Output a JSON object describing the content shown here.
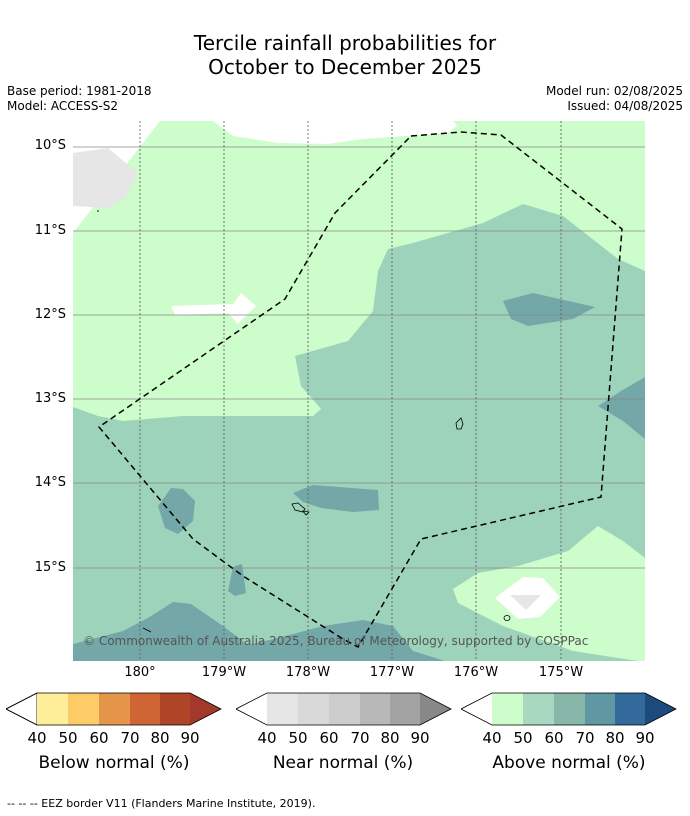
{
  "header": {
    "title_line1": "Tercile rainfall probabilities for",
    "title_line2": "October to December 2025",
    "base_period": "Base period: 1981-2018",
    "model": "Model: ACCESS-S2",
    "model_run": "Model run: 02/08/2025",
    "issued": "Issued: 04/08/2025"
  },
  "map": {
    "lat_labels": [
      "10°S",
      "11°S",
      "12°S",
      "13°S",
      "14°S",
      "15°S"
    ],
    "lon_labels": [
      "180°",
      "179°W",
      "178°W",
      "177°W",
      "176°W",
      "175°W"
    ],
    "copyright": "© Commonwealth of Australia 2025, Bureau of Meteorology, supported by COSPPac",
    "colors": {
      "above_40": "#ccfdca",
      "above_50": "#9ed3bb",
      "above_60": "#73a7a8",
      "near_40": "#e6e6e6",
      "background": "#ffffff"
    }
  },
  "legends": {
    "ticks": [
      "40",
      "50",
      "60",
      "70",
      "80",
      "90"
    ],
    "below": {
      "label": "Below normal (%)",
      "colors": [
        "#ffee99",
        "#fecc66",
        "#e4954a",
        "#cf6535",
        "#ad4526",
        "#a3392b"
      ]
    },
    "near": {
      "label": "Near normal (%)",
      "colors": [
        "#e6e6e6",
        "#d9d9d9",
        "#cccccc",
        "#b8b8b8",
        "#a3a3a3",
        "#888888"
      ]
    },
    "above": {
      "label": "Above normal (%)",
      "colors": [
        "#ccfdca",
        "#a8d8bf",
        "#87b7a8",
        "#5f97a3",
        "#326a9c",
        "#1d4a7c"
      ]
    }
  },
  "footnote": "--  --  -- EEZ border V11 (Flanders Marine Institute, 2019)."
}
